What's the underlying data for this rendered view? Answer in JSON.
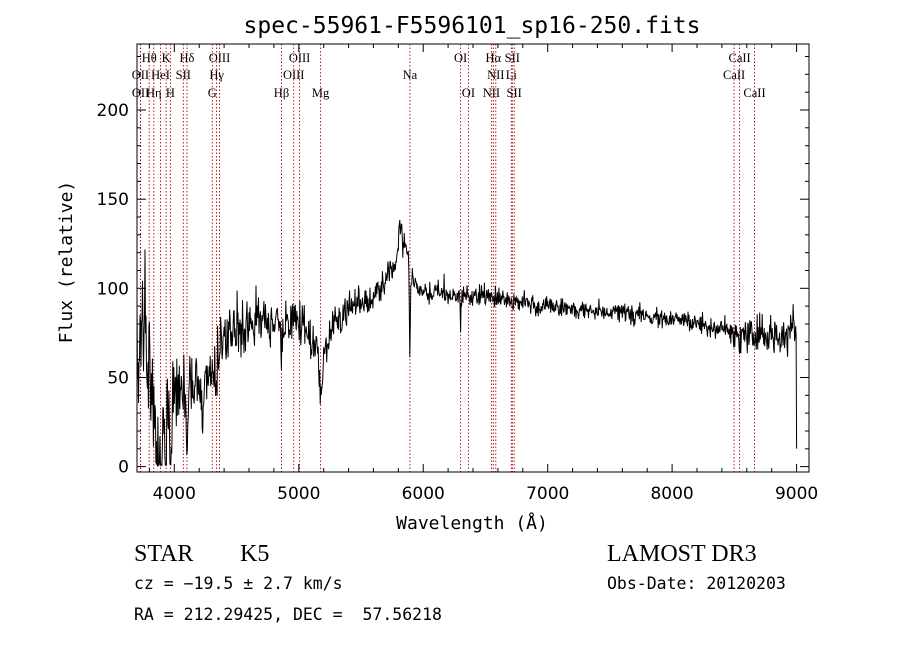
{
  "chart_data": {
    "type": "line",
    "title": "spec-55961-F5596101_sp16-250.fits",
    "xlabel": "Wavelength (Å)",
    "ylabel": "Flux (relative)",
    "xlim": [
      3700,
      9100
    ],
    "ylim": [
      -3,
      237
    ],
    "xticks": [
      4000,
      5000,
      6000,
      7000,
      8000,
      9000
    ],
    "yticks": [
      0,
      50,
      100,
      150,
      200
    ],
    "grid": false,
    "series": [
      {
        "name": "spectrum",
        "anchors": [
          [
            3700,
            60
          ],
          [
            3720,
            78
          ],
          [
            3740,
            80
          ],
          [
            3760,
            68
          ],
          [
            3780,
            55
          ],
          [
            3800,
            48
          ],
          [
            3830,
            38
          ],
          [
            3860,
            30
          ],
          [
            3900,
            28
          ],
          [
            3950,
            35
          ],
          [
            4000,
            40
          ],
          [
            4050,
            42
          ],
          [
            4100,
            45
          ],
          [
            4150,
            40
          ],
          [
            4200,
            45
          ],
          [
            4250,
            52
          ],
          [
            4300,
            58
          ],
          [
            4330,
            60
          ],
          [
            4360,
            65
          ],
          [
            4400,
            72
          ],
          [
            4450,
            75
          ],
          [
            4500,
            78
          ],
          [
            4550,
            78
          ],
          [
            4600,
            80
          ],
          [
            4650,
            84
          ],
          [
            4700,
            82
          ],
          [
            4750,
            83
          ],
          [
            4800,
            80
          ],
          [
            4850,
            78
          ],
          [
            4900,
            80
          ],
          [
            4950,
            82
          ],
          [
            5000,
            78
          ],
          [
            5050,
            75
          ],
          [
            5100,
            72
          ],
          [
            5150,
            68
          ],
          [
            5180,
            62
          ],
          [
            5200,
            66
          ],
          [
            5250,
            75
          ],
          [
            5300,
            82
          ],
          [
            5350,
            86
          ],
          [
            5400,
            88
          ],
          [
            5450,
            90
          ],
          [
            5500,
            92
          ],
          [
            5550,
            93
          ],
          [
            5600,
            95
          ],
          [
            5650,
            98
          ],
          [
            5700,
            105
          ],
          [
            5750,
            112
          ],
          [
            5800,
            118
          ],
          [
            5820,
            122
          ],
          [
            5850,
            124
          ],
          [
            5880,
            118
          ],
          [
            5900,
            108
          ],
          [
            5920,
            104
          ],
          [
            5950,
            100
          ],
          [
            6000,
            98
          ],
          [
            6050,
            97
          ],
          [
            6100,
            98
          ],
          [
            6200,
            96
          ],
          [
            6300,
            96
          ],
          [
            6400,
            95
          ],
          [
            6500,
            96
          ],
          [
            6600,
            95
          ],
          [
            6700,
            93
          ],
          [
            6800,
            92
          ],
          [
            6900,
            90
          ],
          [
            7000,
            90
          ],
          [
            7100,
            89
          ],
          [
            7200,
            88
          ],
          [
            7300,
            88
          ],
          [
            7400,
            87
          ],
          [
            7500,
            87
          ],
          [
            7600,
            86
          ],
          [
            7700,
            85
          ],
          [
            7800,
            84
          ],
          [
            7900,
            83
          ],
          [
            8000,
            82
          ],
          [
            8100,
            82
          ],
          [
            8200,
            80
          ],
          [
            8300,
            79
          ],
          [
            8400,
            77
          ],
          [
            8500,
            75
          ],
          [
            8600,
            74
          ],
          [
            8700,
            73
          ],
          [
            8800,
            73
          ],
          [
            8900,
            75
          ],
          [
            8950,
            80
          ],
          [
            8990,
            80
          ]
        ],
        "features": [
          [
            3705,
            28,
            4
          ],
          [
            3860,
            -45,
            8
          ],
          [
            3890,
            -40,
            10
          ],
          [
            3930,
            -52,
            6
          ],
          [
            3968,
            -45,
            6
          ],
          [
            4100,
            -22,
            8
          ],
          [
            4226,
            -20,
            8
          ],
          [
            4305,
            -12,
            10
          ],
          [
            4340,
            -10,
            8
          ],
          [
            4861,
            -8,
            10
          ],
          [
            5178,
            -22,
            12
          ],
          [
            5892,
            -45,
            4
          ],
          [
            5815,
            15,
            12
          ],
          [
            6300,
            -18,
            3
          ],
          [
            6563,
            -6,
            4
          ],
          [
            8498,
            -8,
            6
          ],
          [
            8542,
            -10,
            6
          ],
          [
            8662,
            -9,
            6
          ],
          [
            8995,
            20,
            2
          ],
          [
            9000,
            -70,
            3
          ]
        ],
        "noise_sigma": [
          [
            3700,
            22
          ],
          [
            3800,
            20
          ],
          [
            4000,
            14
          ],
          [
            4200,
            10
          ],
          [
            4400,
            8
          ],
          [
            5000,
            7
          ],
          [
            5500,
            5
          ],
          [
            6000,
            3
          ],
          [
            7000,
            2.5
          ],
          [
            8000,
            2.5
          ],
          [
            8500,
            4
          ],
          [
            9000,
            6
          ]
        ]
      }
    ],
    "lines": [
      {
        "label": "Hθ",
        "x": 3798,
        "row": 0,
        "anchor": "middle"
      },
      {
        "label": "K",
        "x": 3934,
        "row": 0,
        "anchor": "middle"
      },
      {
        "label": "Hδ",
        "x": 4102,
        "row": 0,
        "anchor": "middle"
      },
      {
        "label": "OIII",
        "x": 4363,
        "row": 0,
        "anchor": "middle"
      },
      {
        "label": "OIII",
        "x": 5007,
        "row": 0,
        "anchor": "middle"
      },
      {
        "label": "OI",
        "x": 6300,
        "row": 0,
        "anchor": "middle"
      },
      {
        "label": "Hα",
        "x": 6563,
        "row": 0,
        "anchor": "middle"
      },
      {
        "label": "SII",
        "x": 6716,
        "row": 0,
        "anchor": "middle"
      },
      {
        "label": "CaII",
        "x": 8542,
        "row": 0,
        "anchor": "middle"
      },
      {
        "label": "OII",
        "x": 3727,
        "row": 1,
        "anchor": "middle"
      },
      {
        "label": "HeI",
        "x": 3889,
        "row": 1,
        "anchor": "middle"
      },
      {
        "label": "SII",
        "x": 4072,
        "row": 1,
        "anchor": "middle"
      },
      {
        "label": "Hγ",
        "x": 4340,
        "row": 1,
        "anchor": "middle"
      },
      {
        "label": "OIII",
        "x": 4959,
        "row": 1,
        "anchor": "middle"
      },
      {
        "label": "Na",
        "x": 5893,
        "row": 1,
        "anchor": "middle"
      },
      {
        "label": "NII",
        "x": 6583,
        "row": 1,
        "anchor": "middle"
      },
      {
        "label": "Li",
        "x": 6708,
        "row": 1,
        "anchor": "middle"
      },
      {
        "label": "CaII",
        "x": 8498,
        "row": 1,
        "anchor": "middle"
      },
      {
        "label": "OII",
        "x": 3729,
        "row": 2,
        "anchor": "middle"
      },
      {
        "label": "Hη",
        "x": 3835,
        "row": 2,
        "anchor": "middle"
      },
      {
        "label": "H",
        "x": 3968,
        "row": 2,
        "anchor": "middle"
      },
      {
        "label": "G",
        "x": 4305,
        "row": 2,
        "anchor": "middle"
      },
      {
        "label": "Hβ",
        "x": 4861,
        "row": 2,
        "anchor": "middle"
      },
      {
        "label": "Mg",
        "x": 5175,
        "row": 2,
        "anchor": "middle"
      },
      {
        "label": "OI",
        "x": 6363,
        "row": 2,
        "anchor": "middle"
      },
      {
        "label": "NII",
        "x": 6548,
        "row": 2,
        "anchor": "middle"
      },
      {
        "label": "SII",
        "x": 6731,
        "row": 2,
        "anchor": "middle"
      },
      {
        "label": "CaII",
        "x": 8662,
        "row": 2,
        "anchor": "middle"
      }
    ],
    "line_color": "#b40000"
  },
  "info": {
    "class": "STAR",
    "subclass": "K5",
    "survey": "LAMOST DR3",
    "cz": "cz = −19.5 ± 2.7 km/s",
    "obs_date": "Obs-Date: 20120203",
    "coords": "RA = 212.29425, DEC =  57.56218"
  }
}
